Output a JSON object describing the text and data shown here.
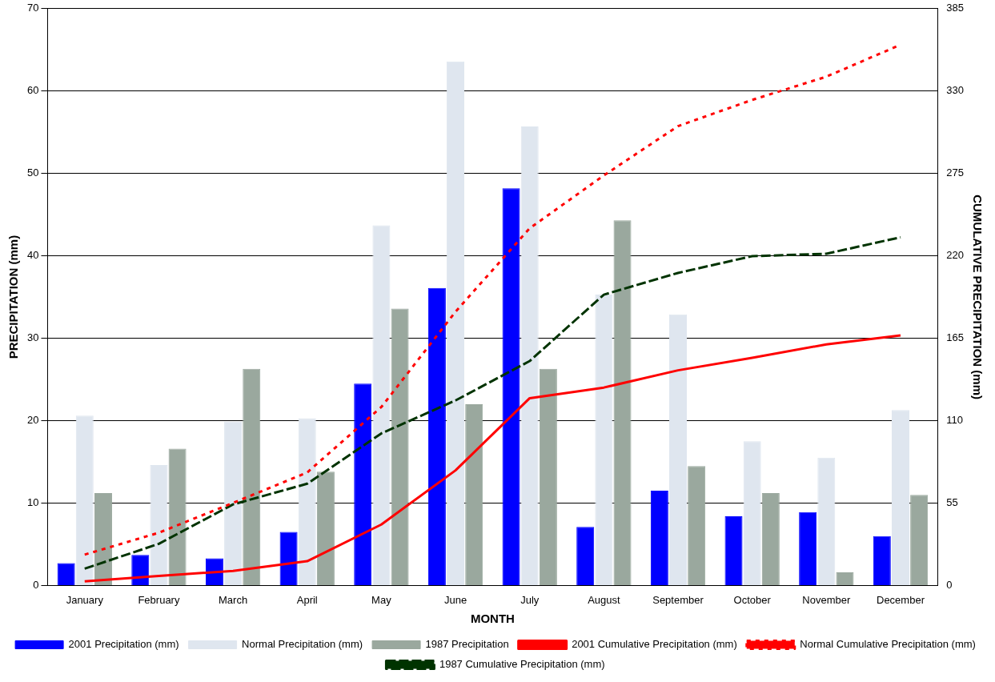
{
  "chart_data": {
    "type": "bar",
    "xlabel": "MONTH",
    "ylabel": "PRECIPITATION (mm)",
    "y2label": "CUMULATIVE PRECIPITATION (mm)",
    "categories": [
      "January",
      "February",
      "March",
      "April",
      "May",
      "June",
      "July",
      "August",
      "September",
      "October",
      "November",
      "December"
    ],
    "series": [
      {
        "name": "2001 Precipitation (mm)",
        "color": "#0000ff",
        "values": [
          2.7,
          3.7,
          3.3,
          6.5,
          24.5,
          36.1,
          48.2,
          7.1,
          11.5,
          8.4,
          8.9,
          6.0
        ]
      },
      {
        "name": "Normal Precipitation (mm)",
        "color": "#dfe6ef",
        "values": [
          20.6,
          14.6,
          19.9,
          20.3,
          43.7,
          63.6,
          55.7,
          35.3,
          32.9,
          17.5,
          15.5,
          21.3
        ]
      },
      {
        "name": "1987 Precipitation",
        "color": "#9aa89e",
        "values": [
          11.2,
          16.6,
          26.3,
          13.8,
          33.6,
          22.0,
          26.3,
          44.3,
          14.5,
          11.2,
          1.6,
          11.0
        ]
      },
      {
        "name": "2001 Cumulative Precipitation (mm)",
        "type": "line",
        "axis": "y2",
        "line_style": "solid",
        "color": "#ff0000",
        "values": [
          2.7,
          6.4,
          9.7,
          16.2,
          40.7,
          76.8,
          125.0,
          132.1,
          143.6,
          152.0,
          160.9,
          166.9
        ]
      },
      {
        "name": "Normal Cumulative Precipitation (mm)",
        "type": "line",
        "axis": "y2",
        "line_style": "dotted",
        "color": "#ff0000",
        "values": [
          20.6,
          35.2,
          55.1,
          75.4,
          119.1,
          182.7,
          238.4,
          273.7,
          306.6,
          324.1,
          339.6,
          360.9
        ]
      },
      {
        "name": "1987 Cumulative Precipitation (mm)",
        "type": "line",
        "axis": "y2",
        "line_style": "dashed",
        "color": "#003300",
        "values": [
          11.2,
          27.8,
          54.1,
          67.9,
          101.5,
          123.5,
          149.8,
          194.1,
          208.6,
          219.8,
          221.4,
          232.4
        ]
      }
    ],
    "ylim": [
      0,
      70
    ],
    "yticks": [
      0,
      10,
      20,
      30,
      40,
      50,
      60,
      70
    ],
    "y2lim": [
      0,
      385
    ],
    "y2ticks": [
      0,
      55,
      110,
      165,
      220,
      275,
      330,
      385
    ],
    "grid": "y",
    "legend": "bottom",
    "marker": "none"
  }
}
